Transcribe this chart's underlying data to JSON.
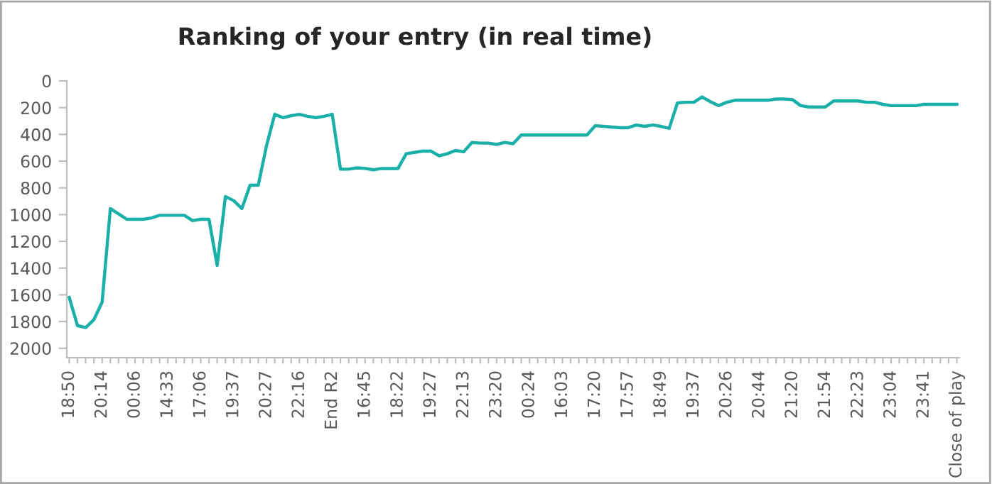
{
  "chart_data": {
    "type": "line",
    "title": "Ranking of your entry (in real time)",
    "categories": [
      "18:50",
      null,
      null,
      null,
      "20:14",
      null,
      null,
      null,
      "00:06",
      null,
      null,
      null,
      "14:33",
      null,
      null,
      null,
      "17:06",
      null,
      null,
      null,
      "19:37",
      null,
      null,
      null,
      "20:27",
      null,
      null,
      null,
      "22:16",
      null,
      null,
      null,
      "End R2",
      null,
      null,
      null,
      "16:45",
      null,
      null,
      null,
      "18:22",
      null,
      null,
      null,
      "19:27",
      null,
      null,
      null,
      "22:13",
      null,
      null,
      null,
      "23:20",
      null,
      null,
      null,
      "00:24",
      null,
      null,
      null,
      "16:03",
      null,
      null,
      null,
      "17:20",
      null,
      null,
      null,
      "17:57",
      null,
      null,
      null,
      "18:49",
      null,
      null,
      null,
      "19:37",
      null,
      null,
      null,
      "20:26",
      null,
      null,
      null,
      "20:44",
      null,
      null,
      null,
      "21:20",
      null,
      null,
      null,
      "21:54",
      null,
      null,
      null,
      "22:23",
      null,
      null,
      null,
      "23:04",
      null,
      null,
      null,
      "23:41",
      null,
      null,
      null,
      "Close of play"
    ],
    "series": [
      {
        "color": "#1aafa8",
        "values": [
          1620,
          1830,
          1845,
          1785,
          1655,
          955,
          995,
          1035,
          1035,
          1035,
          1025,
          1005,
          1005,
          1005,
          1005,
          1045,
          1035,
          1035,
          1380,
          865,
          895,
          955,
          780,
          780,
          485,
          250,
          275,
          260,
          250,
          265,
          275,
          265,
          250,
          660,
          660,
          650,
          655,
          665,
          655,
          655,
          655,
          545,
          535,
          525,
          525,
          560,
          545,
          520,
          530,
          460,
          465,
          465,
          475,
          460,
          470,
          405,
          405,
          405,
          405,
          405,
          405,
          405,
          405,
          405,
          335,
          340,
          345,
          350,
          350,
          330,
          340,
          330,
          340,
          355,
          165,
          160,
          160,
          120,
          155,
          185,
          160,
          145,
          145,
          145,
          145,
          145,
          135,
          135,
          140,
          185,
          195,
          195,
          195,
          150,
          150,
          150,
          150,
          160,
          160,
          175,
          185,
          185,
          185,
          185,
          175,
          175,
          175,
          175,
          175
        ]
      }
    ],
    "ylim": [
      2070,
      0
    ],
    "yticks": [
      0,
      200,
      400,
      600,
      800,
      1000,
      1200,
      1400,
      1600,
      1800,
      2000
    ],
    "marker": "none",
    "line_style": "solid"
  }
}
